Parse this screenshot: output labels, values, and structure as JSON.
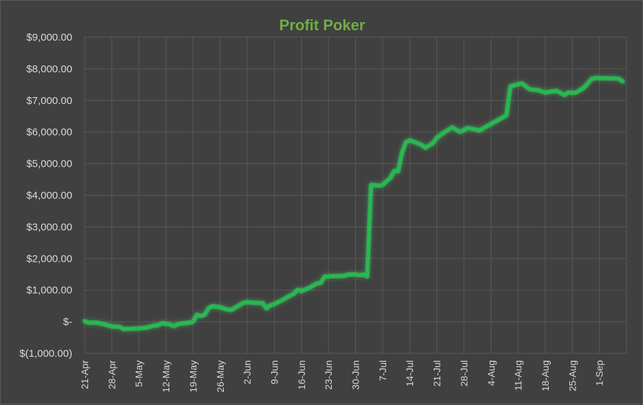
{
  "chart_data": {
    "type": "line",
    "title": "Profit Poker",
    "title_color": "#70ad47",
    "background": "#404040",
    "grid": true,
    "grid_color": "#595959",
    "line_color": "#1fbf4f",
    "glow_color": "#3cff6e",
    "ylim": [
      -1000,
      9000
    ],
    "y_ticks": [
      {
        "value": 9000,
        "label": "$9,000.00"
      },
      {
        "value": 8000,
        "label": "$8,000.00"
      },
      {
        "value": 7000,
        "label": "$7,000.00"
      },
      {
        "value": 6000,
        "label": "$6,000.00"
      },
      {
        "value": 5000,
        "label": "$5,000.00"
      },
      {
        "value": 4000,
        "label": "$4,000.00"
      },
      {
        "value": 3000,
        "label": "$3,000.00"
      },
      {
        "value": 2000,
        "label": "$2,000.00"
      },
      {
        "value": 1000,
        "label": "$1,000.00"
      },
      {
        "value": 0,
        "label": "$-"
      },
      {
        "value": -1000,
        "label": "$(1,000.00)"
      }
    ],
    "x_ticks": [
      "21-Apr",
      "28-Apr",
      "5-May",
      "12-May",
      "19-May",
      "26-May",
      "2-Jun",
      "9-Jun",
      "16-Jun",
      "23-Jun",
      "30-Jun",
      "7-Jul",
      "14-Jul",
      "21-Jul",
      "28-Jul",
      "4-Aug",
      "11-Aug",
      "18-Aug",
      "25-Aug",
      "1-Sep"
    ],
    "xlim_days": [
      0,
      140
    ],
    "series": [
      {
        "points": [
          [
            "21-Apr",
            20
          ],
          [
            "22-Apr",
            -30
          ],
          [
            "24-Apr",
            -30
          ],
          [
            "26-Apr",
            -80
          ],
          [
            "28-Apr",
            -150
          ],
          [
            "30-Apr",
            -160
          ],
          [
            "1-May",
            -230
          ],
          [
            "3-May",
            -220
          ],
          [
            "5-May",
            -210
          ],
          [
            "7-May",
            -190
          ],
          [
            "9-May",
            -120
          ],
          [
            "10-May",
            -110
          ],
          [
            "11-May",
            -50
          ],
          [
            "13-May",
            -80
          ],
          [
            "14-May",
            -140
          ],
          [
            "15-May",
            -80
          ],
          [
            "16-May",
            -60
          ],
          [
            "18-May",
            -30
          ],
          [
            "19-May",
            0
          ],
          [
            "20-May",
            220
          ],
          [
            "21-May",
            180
          ],
          [
            "22-May",
            220
          ],
          [
            "23-May",
            430
          ],
          [
            "24-May",
            490
          ],
          [
            "26-May",
            460
          ],
          [
            "28-May",
            380
          ],
          [
            "29-May",
            380
          ],
          [
            "30-May",
            450
          ],
          [
            "1-Jun",
            600
          ],
          [
            "2-Jun",
            620
          ],
          [
            "4-Jun",
            600
          ],
          [
            "6-Jun",
            590
          ],
          [
            "7-Jun",
            420
          ],
          [
            "8-Jun",
            520
          ],
          [
            "9-Jun",
            560
          ],
          [
            "11-Jun",
            680
          ],
          [
            "13-Jun",
            820
          ],
          [
            "14-Jun",
            880
          ],
          [
            "15-Jun",
            1010
          ],
          [
            "16-Jun",
            970
          ],
          [
            "18-Jun",
            1070
          ],
          [
            "20-Jun",
            1210
          ],
          [
            "21-Jun",
            1230
          ],
          [
            "22-Jun",
            1430
          ],
          [
            "24-Jun",
            1440
          ],
          [
            "27-Jun",
            1450
          ],
          [
            "28-Jun",
            1490
          ],
          [
            "30-Jun",
            1500
          ],
          [
            "1-Jul",
            1470
          ],
          [
            "2-Jul",
            1490
          ],
          [
            "3-Jul",
            1430
          ],
          [
            "4-Jul",
            4330
          ],
          [
            "5-Jul",
            4320
          ],
          [
            "6-Jul",
            4300
          ],
          [
            "7-Jul",
            4330
          ],
          [
            "9-Jul",
            4550
          ],
          [
            "10-Jul",
            4770
          ],
          [
            "11-Jul",
            4760
          ],
          [
            "12-Jul",
            5350
          ],
          [
            "13-Jul",
            5680
          ],
          [
            "14-Jul",
            5740
          ],
          [
            "16-Jul",
            5650
          ],
          [
            "17-Jul",
            5600
          ],
          [
            "18-Jul",
            5500
          ],
          [
            "20-Jul",
            5650
          ],
          [
            "21-Jul",
            5820
          ],
          [
            "23-Jul",
            6000
          ],
          [
            "25-Jul",
            6150
          ],
          [
            "27-Jul",
            6000
          ],
          [
            "29-Jul",
            6130
          ],
          [
            "31-Jul",
            6080
          ],
          [
            "1-Aug",
            6050
          ],
          [
            "8-Aug",
            6530
          ],
          [
            "9-Aug",
            7450
          ],
          [
            "10-Aug",
            7480
          ],
          [
            "12-Aug",
            7540
          ],
          [
            "14-Aug",
            7350
          ],
          [
            "16-Aug",
            7330
          ],
          [
            "18-Aug",
            7250
          ],
          [
            "19-Aug",
            7270
          ],
          [
            "21-Aug",
            7300
          ],
          [
            "23-Aug",
            7170
          ],
          [
            "24-Aug",
            7260
          ],
          [
            "25-Aug",
            7240
          ],
          [
            "26-Aug",
            7250
          ],
          [
            "28-Aug",
            7400
          ],
          [
            "30-Aug",
            7680
          ],
          [
            "31-Aug",
            7710
          ],
          [
            "6-Sep",
            7690
          ],
          [
            "7-Sep",
            7600
          ]
        ]
      }
    ]
  }
}
